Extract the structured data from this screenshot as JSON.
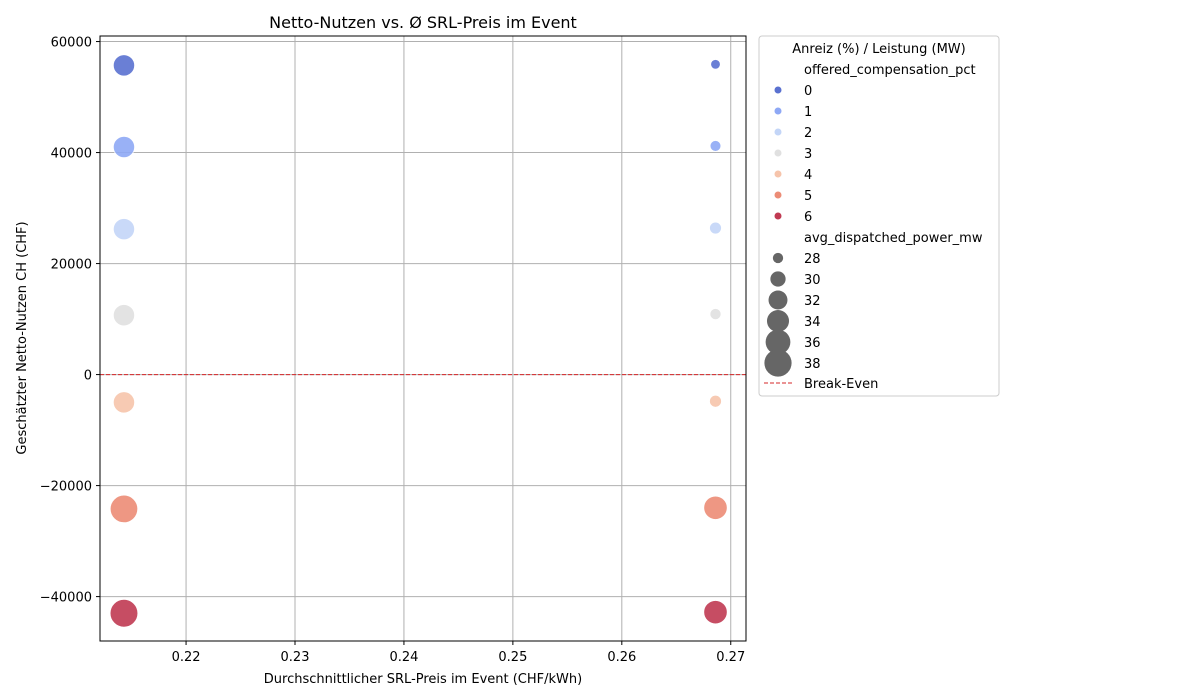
{
  "chart_data": {
    "type": "scatter",
    "title": "Netto-Nutzen vs. Ø SRL-Preis im Event",
    "xlabel": "Durchschnittlicher SRL-Preis im Event (CHF/kWh)",
    "ylabel": "Geschätzter Netto-Nutzen CH (CHF)",
    "xlim": [
      0.2121,
      0.2714
    ],
    "ylim": [
      -48000,
      61000
    ],
    "xticks": [
      0.22,
      0.23,
      0.24,
      0.25,
      0.26,
      0.27
    ],
    "xtick_labels": [
      "0.22",
      "0.23",
      "0.24",
      "0.25",
      "0.26",
      "0.27"
    ],
    "yticks": [
      -40000,
      -20000,
      0,
      20000,
      40000,
      60000
    ],
    "ytick_labels": [
      "−40000",
      "−20000",
      "0",
      "20000",
      "40000",
      "60000"
    ],
    "grid": true,
    "break_even": {
      "y": 0,
      "color": "#d62728",
      "label": "Break-Even"
    },
    "size_range_mw": [
      27,
      39
    ],
    "points": [
      {
        "x": 0.2143,
        "y": 55700,
        "compensation_pct": 0,
        "power_mw": 33.5
      },
      {
        "x": 0.2143,
        "y": 41000,
        "compensation_pct": 1,
        "power_mw": 33.5
      },
      {
        "x": 0.2143,
        "y": 26200,
        "compensation_pct": 2,
        "power_mw": 33.5
      },
      {
        "x": 0.2143,
        "y": 10700,
        "compensation_pct": 3,
        "power_mw": 33.5
      },
      {
        "x": 0.2143,
        "y": -5000,
        "compensation_pct": 4,
        "power_mw": 33.5
      },
      {
        "x": 0.2143,
        "y": -24200,
        "compensation_pct": 5,
        "power_mw": 38.3
      },
      {
        "x": 0.2143,
        "y": -43000,
        "compensation_pct": 6,
        "power_mw": 38.5
      },
      {
        "x": 0.2686,
        "y": 55900,
        "compensation_pct": 0,
        "power_mw": 27.8
      },
      {
        "x": 0.2686,
        "y": 41200,
        "compensation_pct": 1,
        "power_mw": 28.2
      },
      {
        "x": 0.2686,
        "y": 26400,
        "compensation_pct": 2,
        "power_mw": 28.6
      },
      {
        "x": 0.2686,
        "y": 10900,
        "compensation_pct": 3,
        "power_mw": 28.3
      },
      {
        "x": 0.2686,
        "y": -4800,
        "compensation_pct": 4,
        "power_mw": 28.6
      },
      {
        "x": 0.2686,
        "y": -24000,
        "compensation_pct": 5,
        "power_mw": 35.0
      },
      {
        "x": 0.2686,
        "y": -42800,
        "compensation_pct": 6,
        "power_mw": 35.0
      }
    ],
    "legend": {
      "placement": "outside-right",
      "title": "Anreiz (%) / Leistung (MW)",
      "hue_title": "offered_compensation_pct",
      "hue_items": [
        {
          "label": "0",
          "color": "#5a71d0"
        },
        {
          "label": "1",
          "color": "#8ea8f5"
        },
        {
          "label": "2",
          "color": "#c3d5f7"
        },
        {
          "label": "3",
          "color": "#e0e0e0"
        },
        {
          "label": "4",
          "color": "#f6c4ab"
        },
        {
          "label": "5",
          "color": "#ec8c76"
        },
        {
          "label": "6",
          "color": "#c03a52"
        }
      ],
      "size_title": "avg_dispatched_power_mw",
      "size_items": [
        {
          "label": "28",
          "value": 28
        },
        {
          "label": "30",
          "value": 30
        },
        {
          "label": "32",
          "value": 32
        },
        {
          "label": "34",
          "value": 34
        },
        {
          "label": "36",
          "value": 36
        },
        {
          "label": "38",
          "value": 38
        }
      ],
      "size_marker_color": "#666666",
      "line_label": "Break-Even"
    }
  }
}
